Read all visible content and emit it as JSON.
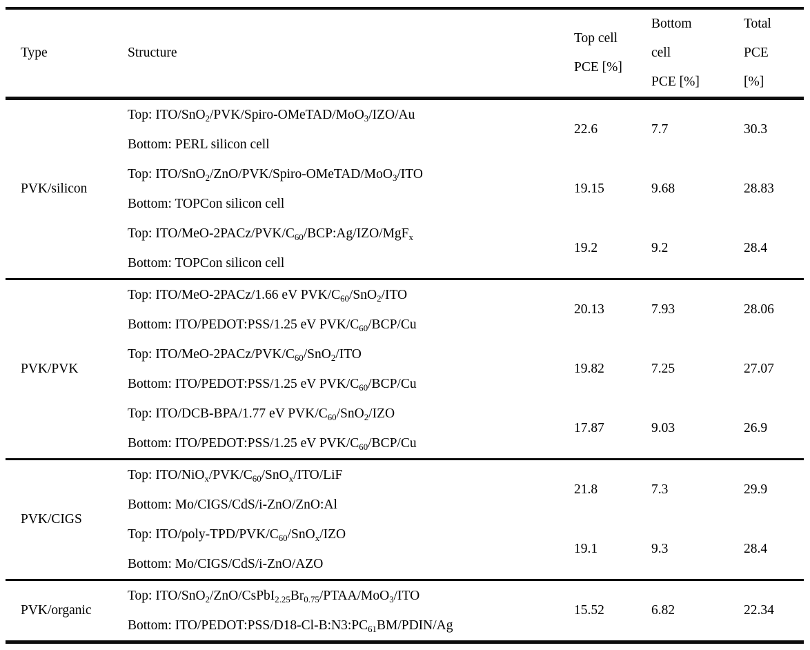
{
  "table": {
    "headers": {
      "type": "Type",
      "structure": "Structure",
      "top_cell_pce": "Top cell\nPCE [%]",
      "bottom_cell_pce": "Bottom\ncell\nPCE [%]",
      "total_pce": "Total\nPCE\n[%]"
    },
    "groups": [
      {
        "type": "PVK/silicon",
        "rows": [
          {
            "top": "Top: ITO/SnO_{2}/PVK/Spiro-OMeTAD/MoO_{3}/IZO/Au",
            "bottom": "Bottom: PERL silicon cell",
            "top_pce": "22.6",
            "bottom_pce": "7.7",
            "total_pce": "30.3"
          },
          {
            "top": "Top: ITO/SnO_{2}/ZnO/PVK/Spiro-OMeTAD/MoO_{3}/ITO",
            "bottom": "Bottom: TOPCon silicon cell",
            "top_pce": "19.15",
            "bottom_pce": "9.68",
            "total_pce": "28.83"
          },
          {
            "top": "Top: ITO/MeO-2PACz/PVK/C_{60}/BCP:Ag/IZO/MgF_{x}",
            "bottom": "Bottom: TOPCon silicon cell",
            "top_pce": "19.2",
            "bottom_pce": "9.2",
            "total_pce": "28.4"
          }
        ]
      },
      {
        "type": "PVK/PVK",
        "rows": [
          {
            "top": "Top: ITO/MeO-2PACz/1.66 eV PVK/C_{60}/SnO_{2}/ITO",
            "bottom": "Bottom: ITO/PEDOT:PSS/1.25 eV PVK/C_{60}/BCP/Cu",
            "top_pce": "20.13",
            "bottom_pce": "7.93",
            "total_pce": "28.06"
          },
          {
            "top": "Top: ITO/MeO-2PACz/PVK/C_{60}/SnO_{2}/ITO",
            "bottom": "Bottom: ITO/PEDOT:PSS/1.25 eV PVK/C_{60}/BCP/Cu",
            "top_pce": "19.82",
            "bottom_pce": "7.25",
            "total_pce": "27.07"
          },
          {
            "top": "Top: ITO/DCB-BPA/1.77 eV PVK/C_{60}/SnO_{2}/IZO",
            "bottom": "Bottom: ITO/PEDOT:PSS/1.25 eV PVK/C_{60}/BCP/Cu",
            "top_pce": "17.87",
            "bottom_pce": "9.03",
            "total_pce": "26.9"
          }
        ]
      },
      {
        "type": "PVK/CIGS",
        "rows": [
          {
            "top": "Top: ITO/NiO_{x}/PVK/C_{60}/SnO_{x}/ITO/LiF",
            "bottom": "Bottom: Mo/CIGS/CdS/i-ZnO/ZnO:Al",
            "top_pce": "21.8",
            "bottom_pce": "7.3",
            "total_pce": "29.9"
          },
          {
            "top": "Top: ITO/poly-TPD/PVK/C_{60}/SnO_{x}/IZO",
            "bottom": "Bottom: Mo/CIGS/CdS/i-ZnO/AZO",
            "top_pce": "19.1",
            "bottom_pce": "9.3",
            "total_pce": "28.4"
          }
        ]
      },
      {
        "type": "PVK/organic",
        "rows": [
          {
            "top": "Top: ITO/SnO_{2}/ZnO/CsPbI_{2.25}Br_{0.75}/PTAA/MoO_{3}/ITO",
            "bottom": "Bottom: ITO/PEDOT:PSS/D18-Cl-B:N3:PC_{61}BM/PDIN/Ag",
            "top_pce": "15.52",
            "bottom_pce": "6.82",
            "total_pce": "22.34"
          }
        ]
      }
    ]
  },
  "colors": {
    "text": "#000000",
    "background": "#ffffff",
    "rule": "#0d0d0d"
  }
}
